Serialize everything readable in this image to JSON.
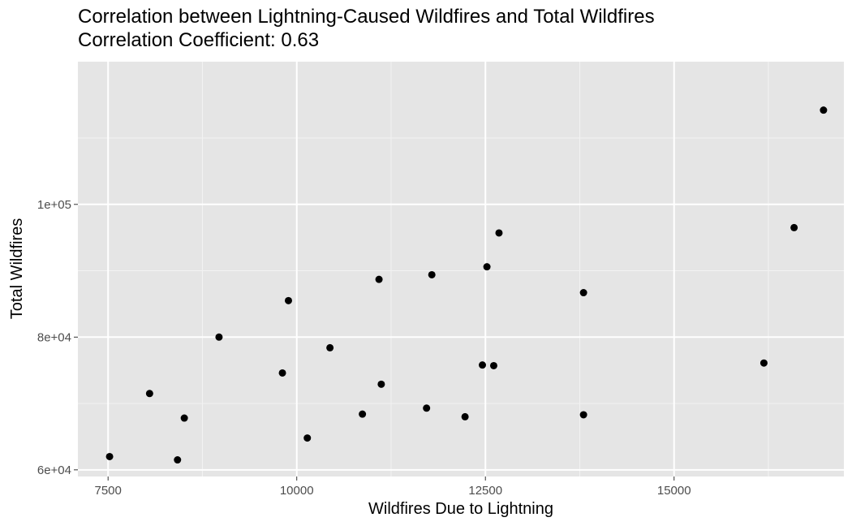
{
  "chart_data": {
    "type": "scatter",
    "title": "Correlation between Lightning-Caused Wildfires and Total Wildfires",
    "subtitle": "Correlation Coefficient: 0.63",
    "xlabel": "Wildfires Due to Lightning",
    "ylabel": "Total Wildfires",
    "xlim": [
      7100,
      17250
    ],
    "ylim": [
      59000,
      121500
    ],
    "x_ticks": [
      7500,
      10000,
      12500,
      15000
    ],
    "x_tick_labels": [
      "7500",
      "10000",
      "12500",
      "15000"
    ],
    "y_ticks": [
      60000,
      80000,
      100000
    ],
    "y_tick_labels": [
      "6e+04",
      "8e+04",
      "1e+05"
    ],
    "grid": true,
    "points": [
      {
        "x": 7520,
        "y": 62000
      },
      {
        "x": 8050,
        "y": 71500
      },
      {
        "x": 8420,
        "y": 61500
      },
      {
        "x": 8510,
        "y": 67800
      },
      {
        "x": 8970,
        "y": 80000
      },
      {
        "x": 9810,
        "y": 74600
      },
      {
        "x": 9890,
        "y": 85500
      },
      {
        "x": 10140,
        "y": 64800
      },
      {
        "x": 10440,
        "y": 78400
      },
      {
        "x": 10870,
        "y": 68400
      },
      {
        "x": 11090,
        "y": 88700
      },
      {
        "x": 11120,
        "y": 72900
      },
      {
        "x": 11720,
        "y": 69300
      },
      {
        "x": 11790,
        "y": 89400
      },
      {
        "x": 12230,
        "y": 68000
      },
      {
        "x": 12460,
        "y": 75800
      },
      {
        "x": 12520,
        "y": 90600
      },
      {
        "x": 12610,
        "y": 75700
      },
      {
        "x": 12680,
        "y": 95700
      },
      {
        "x": 13800,
        "y": 68300
      },
      {
        "x": 13800,
        "y": 86700
      },
      {
        "x": 16190,
        "y": 76100
      },
      {
        "x": 16590,
        "y": 96500
      },
      {
        "x": 16980,
        "y": 114200
      }
    ]
  }
}
